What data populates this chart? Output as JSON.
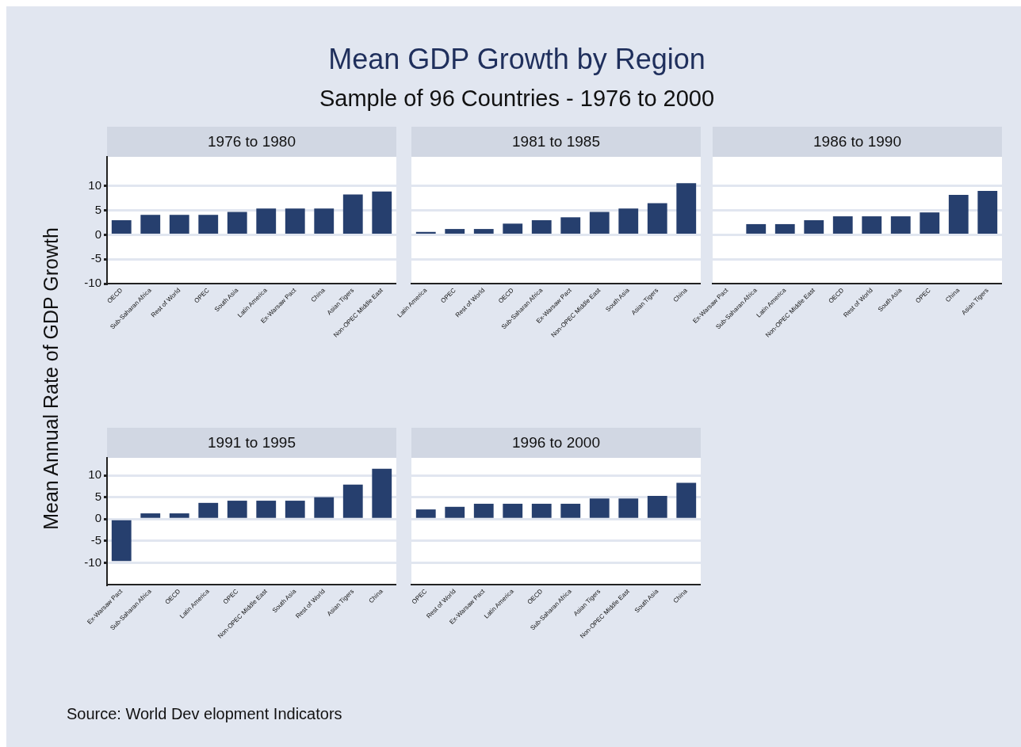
{
  "chart_data": [
    {
      "type": "other",
      "title": "Mean GDP Growth by Region",
      "subtitle": "Sample of 96 Countries - 1976 to 2000",
      "ylabel": "Mean Annual Rate of GDP Growth",
      "annotations": [
        "Source: World Dev elopment Indicators"
      ]
    },
    {
      "type": "bar",
      "title": "1976 to 1980",
      "categories": [
        "OECD",
        "Sub-Saharan Africa",
        "Rest of World",
        "OPEC",
        "South Asia",
        "Latin America",
        "Ex-Warsaw Pact",
        "China",
        "Asian Tigers",
        "Non-OPEC Middle East"
      ],
      "values": [
        3.0,
        4.1,
        4.1,
        4.1,
        4.7,
        5.4,
        5.4,
        5.4,
        8.3,
        8.9
      ],
      "color": "#263f6e",
      "ylim": [
        -10,
        16
      ],
      "yticks": [
        -10,
        -5,
        0,
        5,
        10
      ],
      "grid": "y"
    },
    {
      "type": "bar",
      "title": "1981 to 1985",
      "categories": [
        "Latin America",
        "OPEC",
        "Rest of World",
        "OECD",
        "Sub-Saharan Africa",
        "Ex-Warsaw Pact",
        "Non-OPEC Middle East",
        "South Asia",
        "Asian Tigers",
        "China"
      ],
      "values": [
        0.6,
        1.2,
        1.2,
        2.3,
        3.0,
        3.6,
        4.7,
        5.4,
        6.5,
        10.6
      ],
      "color": "#263f6e",
      "ylim": [
        -10,
        16
      ],
      "yticks": [
        -10,
        -5,
        0,
        5,
        10
      ],
      "grid": "y",
      "tick_labels": "x"
    },
    {
      "type": "bar",
      "title": "1986 to 1990",
      "categories": [
        "Ex-Warsaw Pact",
        "Sub-Saharan Africa",
        "Latin America",
        "Non-OPEC Middle East",
        "OECD",
        "Rest of World",
        "South Asia",
        "OPEC",
        "China",
        "Asian Tigers"
      ],
      "values": [
        null,
        2.2,
        2.2,
        3.0,
        3.8,
        3.8,
        3.8,
        4.6,
        8.2,
        9.0
      ],
      "color": "#263f6e",
      "ylim": [
        -10,
        16
      ],
      "yticks": [
        -10,
        -5,
        0,
        5,
        10
      ],
      "grid": "y",
      "tick_labels": "x"
    },
    {
      "type": "bar",
      "title": "1991 to 1995",
      "categories": [
        "Ex-Warsaw Pact",
        "Sub-Saharan Africa",
        "OECD",
        "Latin America",
        "OPEC",
        "Non-OPEC Middle East",
        "South Asia",
        "Rest of World",
        "Asian Tigers",
        "China"
      ],
      "values": [
        -9.6,
        1.3,
        1.3,
        3.7,
        4.2,
        4.2,
        4.2,
        5.0,
        7.9,
        11.5
      ],
      "color": "#263f6e",
      "ylim": [
        -15,
        14
      ],
      "yticks": [
        -10,
        -5,
        0,
        5,
        10
      ],
      "grid": "y"
    },
    {
      "type": "bar",
      "title": "1996 to 2000",
      "categories": [
        "OPEC",
        "Rest of World",
        "Ex-Warsaw Pact",
        "Latin America",
        "OECD",
        "Sub-Saharan Africa",
        "Asian Tigers",
        "Non-OPEC Middle East",
        "South Asia",
        "China"
      ],
      "values": [
        2.2,
        2.8,
        3.5,
        3.5,
        3.5,
        3.5,
        4.7,
        4.7,
        5.3,
        8.3
      ],
      "color": "#263f6e",
      "ylim": [
        -15,
        14
      ],
      "yticks": [
        -10,
        -5,
        0,
        5,
        10
      ],
      "grid": "y",
      "tick_labels": "x"
    }
  ]
}
